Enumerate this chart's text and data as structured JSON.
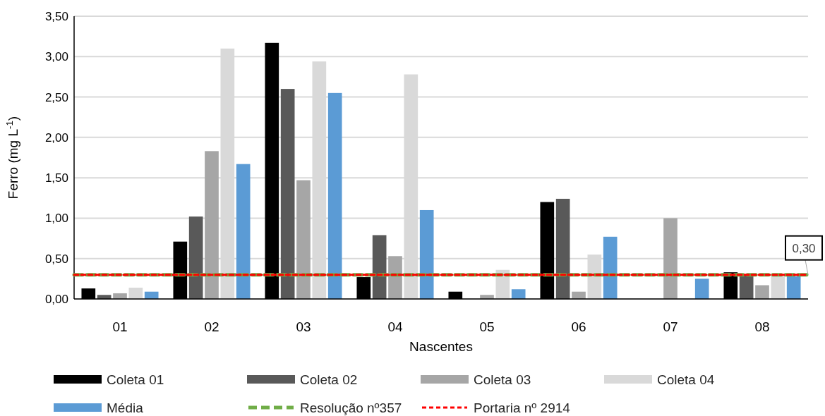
{
  "chart_data": {
    "type": "bar",
    "xlabel": "Nascentes",
    "ylabel": "Ferro (mg L$^{-1}$)",
    "categories": [
      "01",
      "02",
      "03",
      "04",
      "05",
      "06",
      "07",
      "08"
    ],
    "series": [
      {
        "name": "Coleta 01",
        "color": "#000000",
        "values": [
          0.13,
          0.71,
          3.17,
          0.27,
          0.09,
          1.2,
          null,
          0.33
        ]
      },
      {
        "name": "Coleta 02",
        "color": "#595959",
        "values": [
          0.05,
          1.02,
          2.6,
          0.79,
          null,
          1.24,
          null,
          0.3
        ]
      },
      {
        "name": "Coleta 03",
        "color": "#a6a6a6",
        "values": [
          0.07,
          1.83,
          1.47,
          0.53,
          0.05,
          0.09,
          1.0,
          0.17
        ]
      },
      {
        "name": "Coleta 04",
        "color": "#d9d9d9",
        "values": [
          0.14,
          3.1,
          2.94,
          2.78,
          0.36,
          0.55,
          null,
          0.28
        ]
      },
      {
        "name": "Média",
        "color": "#5b9bd5",
        "values": [
          0.09,
          1.67,
          2.55,
          1.1,
          0.12,
          0.77,
          0.25,
          0.28
        ]
      }
    ],
    "ref_lines": [
      {
        "axis": "y",
        "value": 0.3,
        "label": "Resolução nº357",
        "color": "#70ad47",
        "line_style": "dashed"
      },
      {
        "axis": "y",
        "value": 0.3,
        "label": "Portaria nº 2914",
        "color": "#ff0000",
        "line_style": "dotted"
      }
    ],
    "annotations": [
      {
        "text": "0,30",
        "y": 0.3
      }
    ],
    "ylim": [
      0,
      3.5
    ],
    "yticks": [
      {
        "value": 0,
        "label": "0,00"
      },
      {
        "value": 0.5,
        "label": "0,50"
      },
      {
        "value": 1,
        "label": "1,00"
      },
      {
        "value": 1.5,
        "label": "1,50"
      },
      {
        "value": 2,
        "label": "2,00"
      },
      {
        "value": 2.5,
        "label": "2,50"
      },
      {
        "value": 3,
        "label": "3,00"
      },
      {
        "value": 3.5,
        "label": "3,50"
      }
    ],
    "grid": "y",
    "legend": "bottom"
  }
}
